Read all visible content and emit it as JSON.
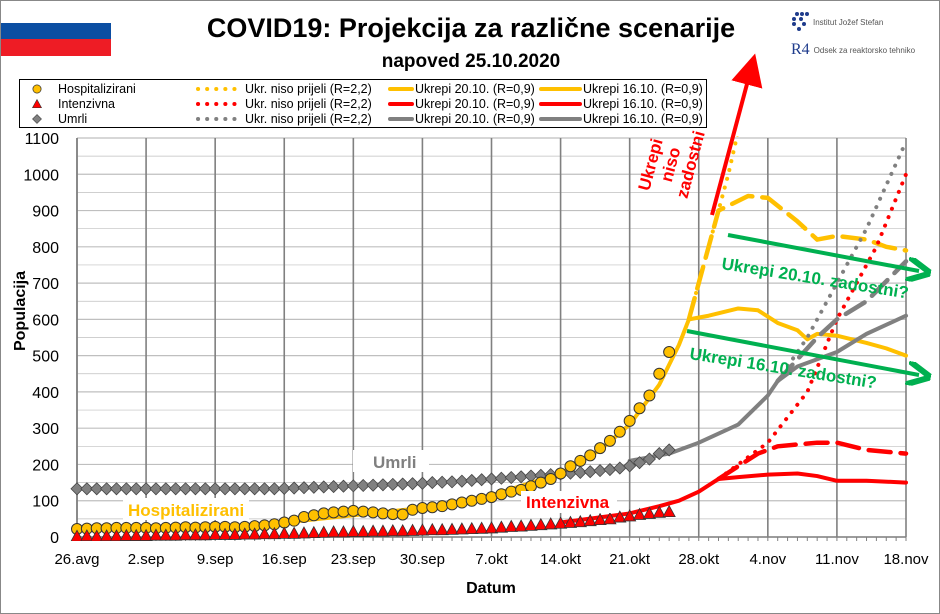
{
  "header": {
    "title": "COVID19: Projekcija za različne scenarije",
    "subtitle": "napoved 25.10.2020"
  },
  "logos": {
    "ijs": "Institut Jožef Stefan",
    "r4_mark": "R4",
    "r4": "Odsek za reaktorsko tehniko"
  },
  "flag": {
    "colors": [
      "#ffffff",
      "#0b4ea2",
      "#ee1c25"
    ]
  },
  "legend": {
    "rows": [
      {
        "marker": "circle",
        "color": "#ffc000",
        "label": "Hospitalizirani",
        "dotted": "Ukr. niso prijeli (R=2,2)",
        "dashed": "Ukrepi 20.10. (R=0,9)",
        "solid": "Ukrepi 16.10. (R=0,9)"
      },
      {
        "marker": "triangle",
        "color": "#ff0000",
        "label": "Intenzivna",
        "dotted": "Ukr. niso prijeli (R=2,2)",
        "dashed": "Ukrepi 20.10. (R=0,9)",
        "solid": "Ukrepi 16.10. (R=0,9)"
      },
      {
        "marker": "diamond",
        "color": "#808080",
        "label": "Umrli",
        "dotted": "Ukr. niso prijeli (R=2,2)",
        "dashed": "Ukrepi 20.10. (R=0,9)",
        "solid": "Ukrepi 16.10. (R=0,9)"
      }
    ]
  },
  "annotations": {
    "umrli": "Umrli",
    "hosp": "Hospitalizirani",
    "intenz": "Intenzivna",
    "niso": [
      "Ukrepi",
      "niso",
      "zadostni"
    ],
    "z20": "Ukrepi 20.10. zadostni?",
    "z16": "Ukrepi 16.10. zadostni?"
  },
  "chart_data": {
    "type": "line",
    "title": "COVID19: Projekcija za različne scenarije",
    "xlabel": "Datum",
    "ylabel": "Populacija",
    "ylim": [
      0,
      1100
    ],
    "yticks": [
      0,
      100,
      200,
      300,
      400,
      500,
      600,
      700,
      800,
      900,
      1000,
      1100
    ],
    "xlim": [
      "2020-08-26",
      "2020-11-18"
    ],
    "xtick_labels": [
      "26.avg",
      "2.sep",
      "9.sep",
      "16.sep",
      "23.sep",
      "30.sep",
      "7.okt",
      "14.okt",
      "21.okt",
      "28.okt",
      "4.nov",
      "11.nov",
      "18.nov"
    ],
    "grid": true,
    "observed_dates": [
      "2020-08-26",
      "2020-08-27",
      "2020-08-28",
      "2020-08-29",
      "2020-08-30",
      "2020-08-31",
      "2020-09-01",
      "2020-09-02",
      "2020-09-03",
      "2020-09-04",
      "2020-09-05",
      "2020-09-06",
      "2020-09-07",
      "2020-09-08",
      "2020-09-09",
      "2020-09-10",
      "2020-09-11",
      "2020-09-12",
      "2020-09-13",
      "2020-09-14",
      "2020-09-15",
      "2020-09-16",
      "2020-09-17",
      "2020-09-18",
      "2020-09-19",
      "2020-09-20",
      "2020-09-21",
      "2020-09-22",
      "2020-09-23",
      "2020-09-24",
      "2020-09-25",
      "2020-09-26",
      "2020-09-27",
      "2020-09-28",
      "2020-09-29",
      "2020-09-30",
      "2020-10-01",
      "2020-10-02",
      "2020-10-03",
      "2020-10-04",
      "2020-10-05",
      "2020-10-06",
      "2020-10-07",
      "2020-10-08",
      "2020-10-09",
      "2020-10-10",
      "2020-10-11",
      "2020-10-12",
      "2020-10-13",
      "2020-10-14",
      "2020-10-15",
      "2020-10-16",
      "2020-10-17",
      "2020-10-18",
      "2020-10-19",
      "2020-10-20",
      "2020-10-21",
      "2020-10-22",
      "2020-10-23",
      "2020-10-24",
      "2020-10-25"
    ],
    "observed": [
      {
        "name": "Hospitalizirani",
        "color": "#ffc000",
        "marker": "circle",
        "values": [
          22,
          23,
          24,
          24,
          25,
          25,
          25,
          25,
          24,
          25,
          26,
          27,
          26,
          27,
          28,
          28,
          27,
          28,
          30,
          32,
          35,
          40,
          45,
          55,
          60,
          65,
          68,
          70,
          72,
          70,
          68,
          65,
          63,
          62,
          75,
          80,
          82,
          85,
          90,
          95,
          100,
          105,
          110,
          118,
          125,
          130,
          140,
          150,
          160,
          175,
          195,
          210,
          225,
          245,
          265,
          290,
          320,
          355,
          390,
          450,
          510
        ]
      },
      {
        "name": "Intenzivna",
        "color": "#ff0000",
        "marker": "triangle",
        "values": [
          2,
          3,
          2,
          3,
          3,
          4,
          4,
          4,
          5,
          5,
          5,
          6,
          6,
          6,
          7,
          7,
          7,
          8,
          8,
          9,
          9,
          10,
          10,
          11,
          12,
          13,
          14,
          14,
          15,
          15,
          16,
          16,
          17,
          17,
          18,
          19,
          20,
          20,
          21,
          22,
          23,
          24,
          25,
          27,
          29,
          30,
          32,
          34,
          36,
          38,
          40,
          42,
          45,
          48,
          50,
          55,
          58,
          62,
          65,
          68,
          70
        ]
      },
      {
        "name": "Umrli",
        "color": "#808080",
        "marker": "diamond",
        "values": [
          133,
          133,
          133,
          133,
          133,
          133,
          133,
          133,
          133,
          133,
          133,
          133,
          133,
          133,
          133,
          133,
          133,
          133,
          133,
          133,
          133,
          134,
          135,
          136,
          137,
          138,
          139,
          140,
          141,
          142,
          143,
          144,
          145,
          146,
          147,
          148,
          150,
          151,
          152,
          154,
          156,
          158,
          160,
          162,
          164,
          166,
          168,
          170,
          172,
          174,
          176,
          178,
          180,
          183,
          186,
          190,
          196,
          205,
          215,
          230,
          240
        ]
      }
    ],
    "projections": [
      {
        "name": "Ukrepi 16.10. (R=0,9)",
        "group": "Hospitalizirani",
        "color": "#ffc000",
        "style": "solid",
        "points": [
          [
            "2020-09-16",
            40
          ],
          [
            "2020-09-23",
            60
          ],
          [
            "2020-09-30",
            80
          ],
          [
            "2020-10-07",
            115
          ],
          [
            "2020-10-14",
            175
          ],
          [
            "2020-10-18",
            240
          ],
          [
            "2020-10-21",
            310
          ],
          [
            "2020-10-24",
            420
          ],
          [
            "2020-10-26",
            530
          ],
          [
            "2020-10-27",
            600
          ],
          [
            "2020-10-29",
            610
          ],
          [
            "2020-11-01",
            630
          ],
          [
            "2020-11-03",
            625
          ],
          [
            "2020-11-05",
            590
          ],
          [
            "2020-11-07",
            570
          ],
          [
            "2020-11-08",
            545
          ],
          [
            "2020-11-09",
            560
          ],
          [
            "2020-11-11",
            555
          ],
          [
            "2020-11-14",
            535
          ],
          [
            "2020-11-16",
            520
          ],
          [
            "2020-11-18",
            500
          ]
        ]
      },
      {
        "name": "Ukrepi 20.10. (R=0,9)",
        "group": "Hospitalizirani",
        "color": "#ffc000",
        "style": "dashed",
        "points": [
          [
            "2020-10-27",
            600
          ],
          [
            "2020-10-30",
            900
          ],
          [
            "2020-11-02",
            940
          ],
          [
            "2020-11-04",
            935
          ],
          [
            "2020-11-07",
            870
          ],
          [
            "2020-11-09",
            820
          ],
          [
            "2020-11-11",
            830
          ],
          [
            "2020-11-14",
            820
          ],
          [
            "2020-11-16",
            800
          ],
          [
            "2020-11-18",
            790
          ]
        ]
      },
      {
        "name": "Ukr. niso prijeli (R=2,2)",
        "group": "Hospitalizirani",
        "color": "#ffc000",
        "style": "dotted",
        "points": [
          [
            "2020-10-27",
            600
          ],
          [
            "2020-10-29",
            800
          ],
          [
            "2020-10-31",
            1000
          ],
          [
            "2020-11-01",
            1120
          ]
        ]
      },
      {
        "name": "Ukrepi 16.10. (R=0,9)",
        "group": "Intenzivna",
        "color": "#ff0000",
        "style": "solid",
        "points": [
          [
            "2020-10-14",
            40
          ],
          [
            "2020-10-21",
            65
          ],
          [
            "2020-10-24",
            85
          ],
          [
            "2020-10-26",
            100
          ],
          [
            "2020-10-28",
            125
          ],
          [
            "2020-10-30",
            160
          ],
          [
            "2020-11-01",
            165
          ],
          [
            "2020-11-04",
            172
          ],
          [
            "2020-11-07",
            175
          ],
          [
            "2020-11-09",
            168
          ],
          [
            "2020-11-11",
            155
          ],
          [
            "2020-11-14",
            155
          ],
          [
            "2020-11-18",
            150
          ]
        ]
      },
      {
        "name": "Ukrepi 20.10. (R=0,9)",
        "group": "Intenzivna",
        "color": "#ff0000",
        "style": "dashed",
        "points": [
          [
            "2020-10-30",
            160
          ],
          [
            "2020-11-03",
            230
          ],
          [
            "2020-11-05",
            250
          ],
          [
            "2020-11-09",
            260
          ],
          [
            "2020-11-11",
            260
          ],
          [
            "2020-11-14",
            240
          ],
          [
            "2020-11-18",
            230
          ]
        ]
      },
      {
        "name": "Ukr. niso prijeli (R=2,2)",
        "group": "Intenzivna",
        "color": "#ff0000",
        "style": "dotted",
        "points": [
          [
            "2020-10-30",
            160
          ],
          [
            "2020-11-04",
            260
          ],
          [
            "2020-11-08",
            400
          ],
          [
            "2020-11-11",
            600
          ],
          [
            "2020-11-15",
            800
          ],
          [
            "2020-11-18",
            1000
          ]
        ]
      },
      {
        "name": "Ukrepi 16.10. (R=0,9)",
        "group": "Umrli",
        "color": "#808080",
        "style": "solid",
        "points": [
          [
            "2020-10-21",
            210
          ],
          [
            "2020-10-25",
            230
          ],
          [
            "2020-10-28",
            260
          ],
          [
            "2020-11-01",
            310
          ],
          [
            "2020-11-04",
            390
          ],
          [
            "2020-11-05",
            430
          ],
          [
            "2020-11-07",
            470
          ],
          [
            "2020-11-11",
            510
          ],
          [
            "2020-11-14",
            560
          ],
          [
            "2020-11-18",
            610
          ]
        ]
      },
      {
        "name": "Ukrepi 20.10. (R=0,9)",
        "group": "Umrli",
        "color": "#808080",
        "style": "dashed",
        "points": [
          [
            "2020-11-05",
            430
          ],
          [
            "2020-11-09",
            550
          ],
          [
            "2020-11-11",
            600
          ],
          [
            "2020-11-14",
            650
          ],
          [
            "2020-11-18",
            760
          ]
        ]
      },
      {
        "name": "Ukr. niso prijeli (R=2,2)",
        "group": "Umrli",
        "color": "#808080",
        "style": "dotted",
        "points": [
          [
            "2020-11-05",
            430
          ],
          [
            "2020-11-08",
            550
          ],
          [
            "2020-11-11",
            700
          ],
          [
            "2020-11-14",
            850
          ],
          [
            "2020-11-18",
            1090
          ]
        ]
      }
    ]
  }
}
